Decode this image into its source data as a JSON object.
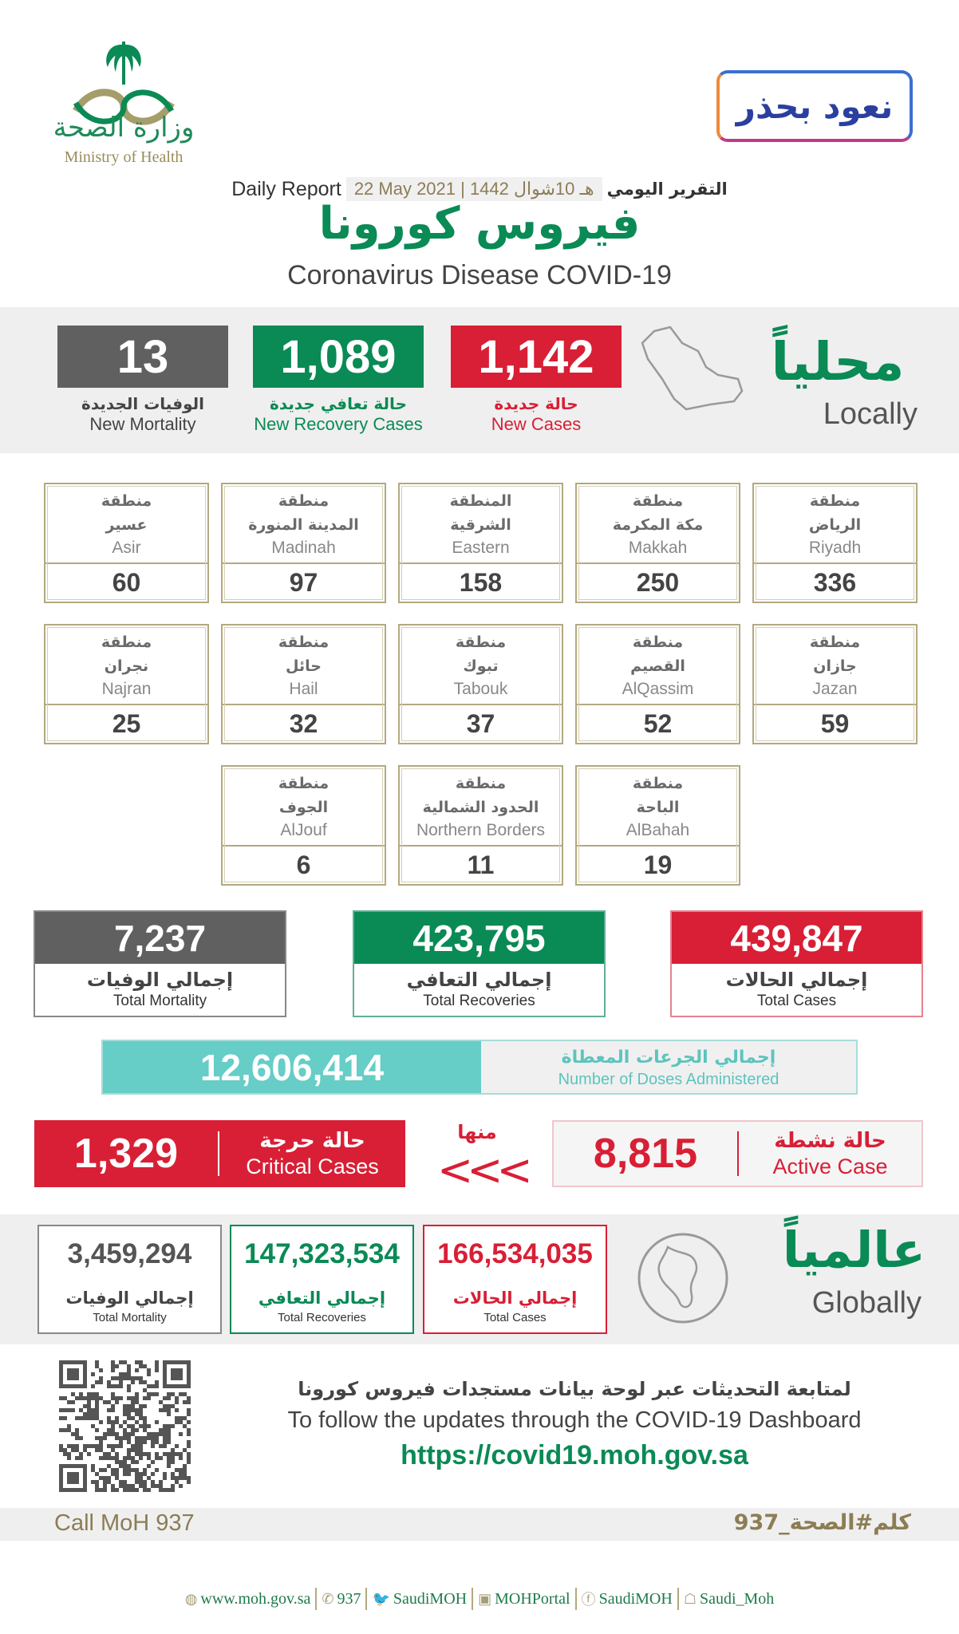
{
  "header": {
    "logo_ar": "وزارة الصحة",
    "logo_en": "Ministry of Health",
    "campaign_logo": "نعود بحذر",
    "report_en": "Daily Report",
    "report_date": "22 May 2021 | 1442 هـ 10شوال",
    "report_ar": "التقرير اليومي",
    "title_ar": "فيروس كورونا",
    "title_en": "Coronavirus Disease COVID-19"
  },
  "locally": {
    "label_ar": "محلياً",
    "label_en": "Locally",
    "new_cases": {
      "value": "1,142",
      "ar": "حالة جديدة",
      "en": "New Cases",
      "color": "#d81f35"
    },
    "new_recovery": {
      "value": "1,089",
      "ar": "حالة تعافي جديدة",
      "en": "New Recovery Cases",
      "color": "#0a8a55"
    },
    "new_mortality": {
      "value": "13",
      "ar": "الوفيات الجديدة",
      "en": "New Mortality",
      "color": "#606060"
    }
  },
  "regions": [
    {
      "ar1": "منطقة",
      "ar2": "الرياض",
      "en": "Riyadh",
      "value": "336"
    },
    {
      "ar1": "منطقة",
      "ar2": "مكة المكرمة",
      "en": "Makkah",
      "value": "250"
    },
    {
      "ar1": "المنطقة",
      "ar2": "الشرقية",
      "en": "Eastern",
      "value": "158"
    },
    {
      "ar1": "منطقة",
      "ar2": "المدينة المنورة",
      "en": "Madinah",
      "value": "97"
    },
    {
      "ar1": "منطقة",
      "ar2": "عسير",
      "en": "Asir",
      "value": "60"
    },
    {
      "ar1": "منطقة",
      "ar2": "جازان",
      "en": "Jazan",
      "value": "59"
    },
    {
      "ar1": "منطقة",
      "ar2": "القصيم",
      "en": "AlQassim",
      "value": "52"
    },
    {
      "ar1": "منطقة",
      "ar2": "تبوك",
      "en": "Tabouk",
      "value": "37"
    },
    {
      "ar1": "منطقة",
      "ar2": "حائل",
      "en": "Hail",
      "value": "32"
    },
    {
      "ar1": "منطقة",
      "ar2": "نجران",
      "en": "Najran",
      "value": "25"
    },
    {
      "ar1": "منطقة",
      "ar2": "الباحة",
      "en": "AlBahah",
      "value": "19"
    },
    {
      "ar1": "منطقة",
      "ar2": "الحدود الشمالية",
      "en": "Northern Borders",
      "value": "11"
    },
    {
      "ar1": "منطقة",
      "ar2": "الجوف",
      "en": "AlJouf",
      "value": "6"
    }
  ],
  "totals": {
    "cases": {
      "value": "439,847",
      "ar": "إجمالي الحالات",
      "en": "Total Cases",
      "color": "#d81f35"
    },
    "recoveries": {
      "value": "423,795",
      "ar": "إجمالي التعافي",
      "en": "Total Recoveries",
      "color": "#0a8a55"
    },
    "mortality": {
      "value": "7,237",
      "ar": "إجمالي الوفيات",
      "en": "Total Mortality",
      "color": "#606060"
    }
  },
  "doses": {
    "value": "12,606,414",
    "ar": "إجمالي الجرعات المعطاة",
    "en": "Number of Doses Administered",
    "color": "#66cdc7"
  },
  "active": {
    "value": "8,815",
    "ar": "حالة نشطة",
    "en": "Active Case"
  },
  "of_which": "منها",
  "arrows": "<<<",
  "critical": {
    "value": "1,329",
    "ar": "حالة حرجة",
    "en": "Critical Cases"
  },
  "global": {
    "label_ar": "عالمياً",
    "label_en": "Globally",
    "cases": {
      "value": "166,534,035",
      "ar": "إجمالي الحالات",
      "en": "Total Cases",
      "color": "#d81f35"
    },
    "recoveries": {
      "value": "147,323,534",
      "ar": "إجمالي التعافي",
      "en": "Total Recoveries",
      "color": "#0a8a55"
    },
    "mortality": {
      "value": "3,459,294",
      "ar": "إجمالي الوفيات",
      "en": "Total Mortality",
      "color": "#606060"
    }
  },
  "dashboard": {
    "ar": "لمتابعة التحديثات عبر لوحة بيانات مستجدات فيروس كورونا",
    "en": "To follow the updates through the COVID-19 Dashboard",
    "url": "https://covid19.moh.gov.sa"
  },
  "call": {
    "en": "Call MoH 937",
    "ar": "كلم#الصحة_937"
  },
  "footer": [
    {
      "icon": "globe-icon",
      "glyph": "◍",
      "label": "www.moh.gov.sa"
    },
    {
      "icon": "phone-icon",
      "glyph": "✆",
      "label": "937"
    },
    {
      "icon": "twitter-icon",
      "glyph": "🐦",
      "label": "SaudiMOH"
    },
    {
      "icon": "youtube-icon",
      "glyph": "▣",
      "label": "MOHPortal"
    },
    {
      "icon": "facebook-icon",
      "glyph": "ⓕ",
      "label": "SaudiMOH"
    },
    {
      "icon": "snapchat-icon",
      "glyph": "☖",
      "label": "Saudi_Moh"
    }
  ]
}
